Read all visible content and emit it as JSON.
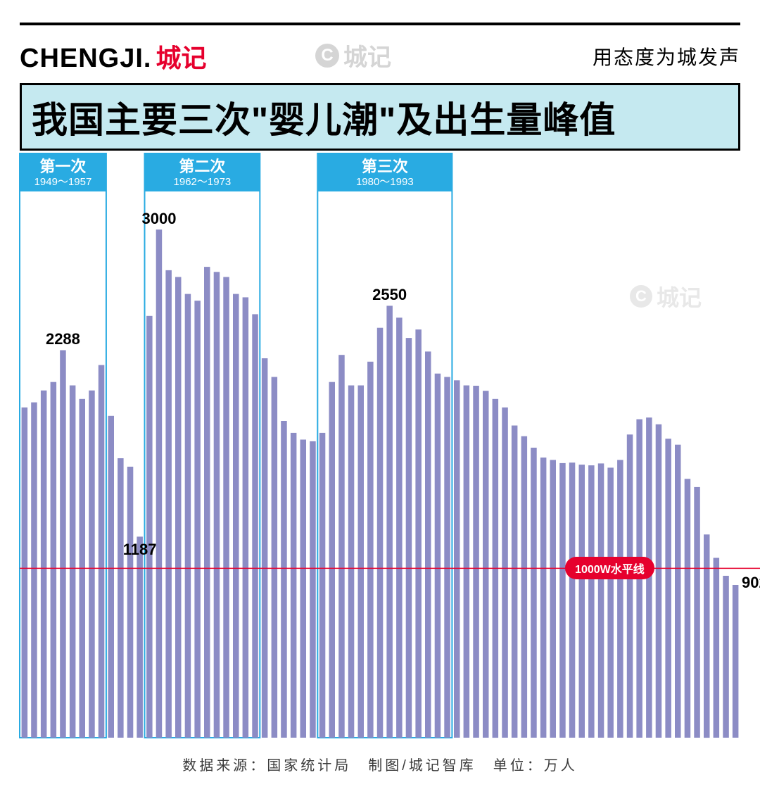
{
  "header": {
    "logo_en": "CHENGJI.",
    "logo_cn": "城记",
    "slogan": "用态度为城发声",
    "watermark_text": "城记"
  },
  "title": "我国主要三次\"婴儿潮\"及出生量峰值",
  "footer": "数据来源：国家统计局　制图/城记智库　单位：万人",
  "chart": {
    "type": "bar",
    "year_start": 1949,
    "year_end": 2023,
    "ylim": [
      0,
      3200
    ],
    "bar_color": "#8c8cc5",
    "bar_width_ratio": 0.62,
    "background_color": "#ffffff",
    "wave_box_border_color": "#29abe2",
    "wave_box_border_width": 2,
    "wave_label_bg": "#29abe2",
    "hline": {
      "value": 1000,
      "color": "#e6002d",
      "width": 1.5,
      "label": "1000W水平线",
      "label_x_year": 2006
    },
    "values": [
      1950,
      1980,
      2050,
      2100,
      2288,
      2080,
      2000,
      2050,
      2200,
      1900,
      1650,
      1600,
      1187,
      2490,
      3000,
      2760,
      2720,
      2620,
      2580,
      2780,
      2750,
      2720,
      2620,
      2600,
      2500,
      2240,
      2130,
      1870,
      1800,
      1760,
      1750,
      1800,
      2100,
      2260,
      2080,
      2080,
      2220,
      2420,
      2550,
      2480,
      2360,
      2410,
      2280,
      2150,
      2130,
      2110,
      2080,
      2078,
      2048,
      2000,
      1950,
      1843,
      1780,
      1712,
      1654,
      1640,
      1621,
      1624,
      1612,
      1608,
      1619,
      1594,
      1640,
      1790,
      1880,
      1890,
      1850,
      1765,
      1730,
      1528,
      1480,
      1200,
      1062,
      956,
      902
    ],
    "waves": [
      {
        "title": "第一次",
        "range": "1949～1957",
        "from": 1949,
        "to": 1957
      },
      {
        "title": "第二次",
        "range": "1962～1973",
        "from": 1962,
        "to": 1973
      },
      {
        "title": "第三次",
        "range": "1980～1993",
        "from": 1980,
        "to": 1993
      }
    ],
    "peak_labels": [
      {
        "year": 1953,
        "value": 2288,
        "text": "2288"
      },
      {
        "year": 1963,
        "value": 3000,
        "text": "3000"
      },
      {
        "year": 1961,
        "value": 1187,
        "text": "1187",
        "below": true
      },
      {
        "year": 1987,
        "value": 2550,
        "text": "2550"
      }
    ],
    "edge_label": {
      "year": 2023,
      "text": "902"
    },
    "watermark2": {
      "text": "城记",
      "x_year": 2012,
      "y_value": 2700
    }
  },
  "colors": {
    "black": "#000000",
    "red": "#e6002d",
    "cyan": "#29abe2",
    "title_bg": "#c5e9f0",
    "bar": "#8c8cc5",
    "wm": "#e8e8e8"
  }
}
